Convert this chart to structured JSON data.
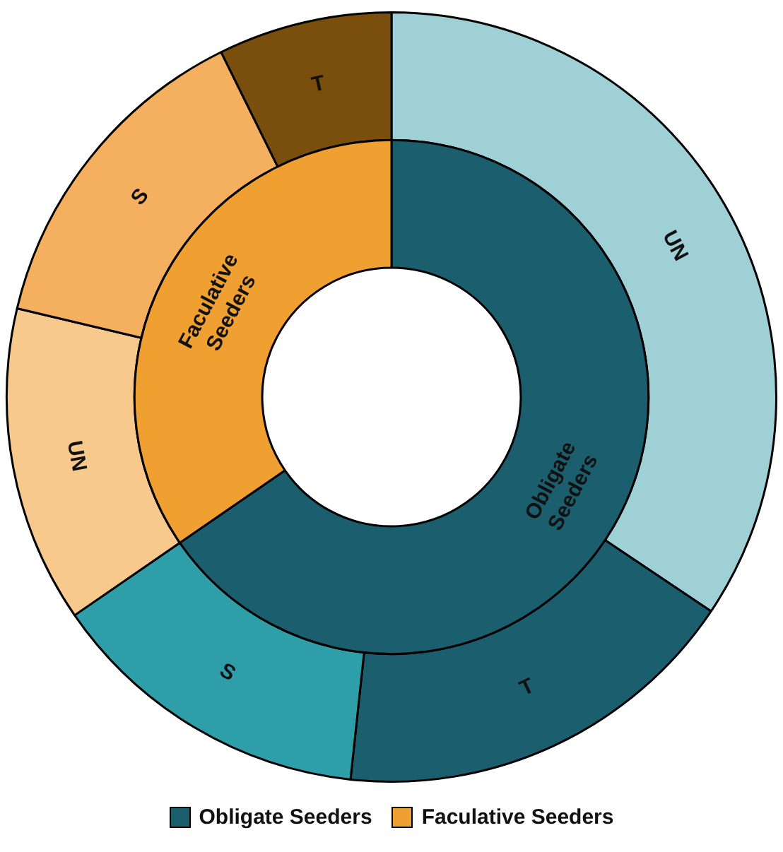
{
  "chart_data": [
    {
      "type": "donut",
      "categories": [
        "Obligate Seeders",
        "Faculative Seeders"
      ],
      "values": [
        65.4,
        34.6
      ],
      "colors": [
        "#1b5e6e",
        "#f0a030"
      ],
      "legend": "bottom"
    },
    {
      "type": "donut",
      "categories": [
        "UN",
        "T",
        "S",
        "UN",
        "S",
        "T"
      ],
      "values": [
        34.4,
        17.3,
        13.7,
        13.3,
        14.0,
        7.3
      ],
      "colors": [
        "#9fd0d6",
        "#1b5e6e",
        "#2e9ea8",
        "#f8c98d",
        "#f4b05e",
        "#7a4e0c"
      ]
    }
  ]
}
